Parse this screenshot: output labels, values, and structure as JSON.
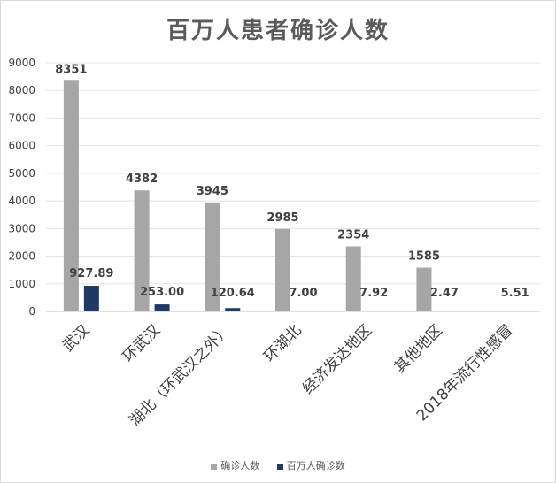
{
  "chart_data": {
    "type": "bar",
    "title": "百万人患者确诊人数",
    "categories": [
      "武汉",
      "环武汉",
      "湖北（环武汉之外）",
      "环湖北",
      "经济发达地区",
      "其他地区",
      "2018年流行性感冒"
    ],
    "series": [
      {
        "name": "确诊人数",
        "color": "#a6a6a6",
        "values": [
          8351,
          4382,
          3945,
          2985,
          2354,
          1585,
          null
        ],
        "labels": [
          "8351",
          "4382",
          "3945",
          "2985",
          "2354",
          "1585",
          ""
        ]
      },
      {
        "name": "百万人确诊数",
        "color": "#1f3864",
        "values": [
          927.89,
          253.0,
          120.64,
          7.0,
          7.92,
          2.47,
          5.51
        ],
        "labels": [
          "927.89",
          "253.00",
          "120.64",
          "7.00",
          "7.92",
          "2.47",
          "5.51"
        ]
      }
    ],
    "ylim": [
      0,
      9000
    ],
    "yticks": [
      0,
      1000,
      2000,
      3000,
      4000,
      5000,
      6000,
      7000,
      8000,
      9000
    ],
    "grid": true,
    "legend_position": "bottom"
  }
}
